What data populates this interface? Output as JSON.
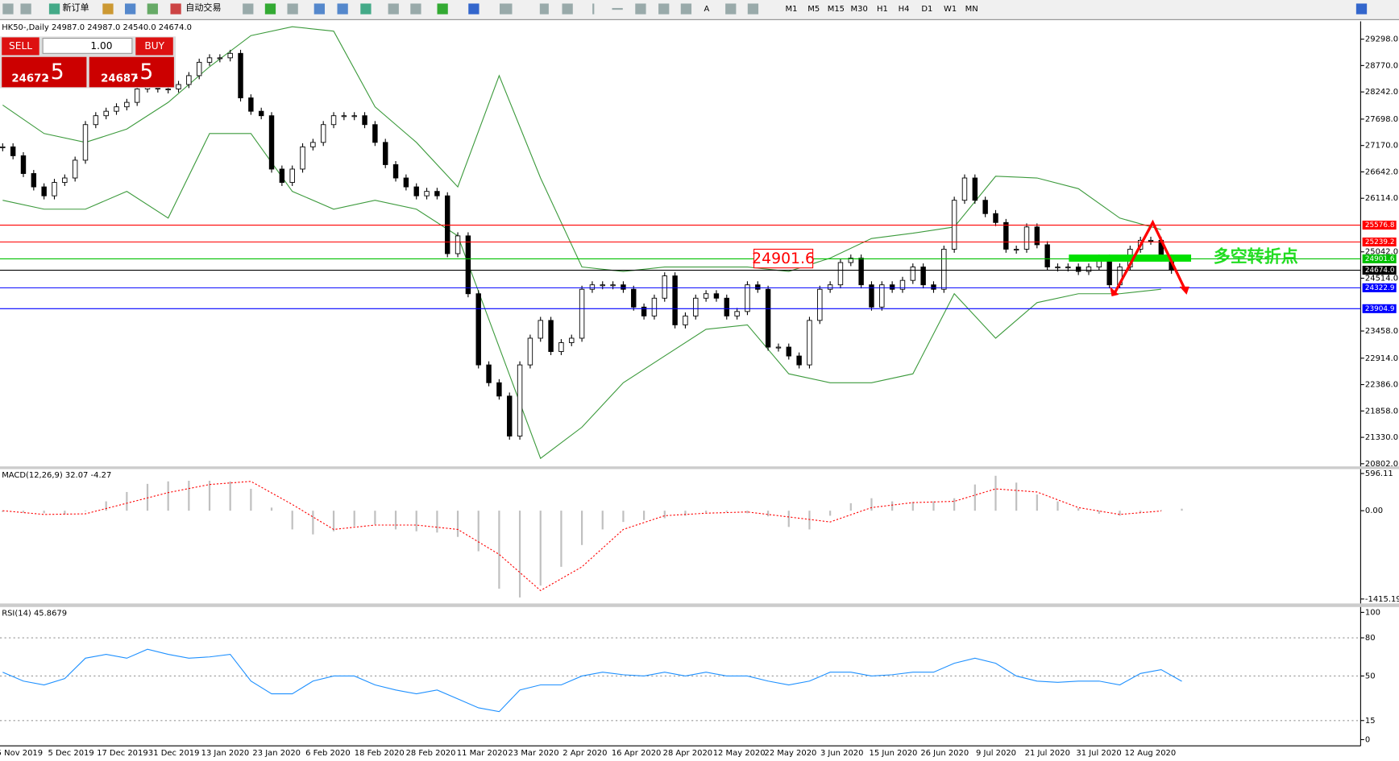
{
  "toolbar": {
    "new_order": "新订单",
    "auto_trading": "自动交易",
    "timeframes": [
      "M1",
      "M5",
      "M15",
      "M30",
      "H1",
      "H4",
      "D1",
      "W1",
      "MN"
    ]
  },
  "trade_panel": {
    "sell": "SELL",
    "lots": "1.00",
    "buy": "BUY",
    "sell_price": "24672",
    "sell_pips": ".5",
    "buy_price": "24687",
    "buy_pips": ".5"
  },
  "chart_data": [
    {
      "type": "candlestick",
      "title": "HK50-,Daily  24987.0 24987.0 24540.0 24674.0",
      "categories": [
        "5 Nov 2019",
        "5 Dec 2019",
        "17 Dec 2019",
        "31 Dec 2019",
        "13 Jan 2020",
        "23 Jan 2020",
        "6 Feb 2020",
        "18 Feb 2020",
        "28 Feb 2020",
        "11 Mar 2020",
        "23 Mar 2020",
        "2 Apr 2020",
        "16 Apr 2020",
        "28 Apr 2020",
        "12 May 2020",
        "22 May 2020",
        "3 Jun 2020",
        "15 Jun 2020",
        "26 Jun 2020",
        "9 Jul 2020",
        "21 Jul 2020",
        "31 Jul 2020",
        "12 Aug 2020"
      ],
      "closes": [
        27143,
        26965,
        26609,
        26342,
        26163,
        26431,
        26520,
        26876,
        27588,
        27766,
        27855,
        27944,
        28033,
        28301,
        28390,
        28301,
        28301,
        28390,
        28568,
        28835,
        28924,
        28924,
        29013,
        28123,
        27855,
        27766,
        26698,
        26431,
        26698,
        27143,
        27232,
        27588,
        27766,
        27766,
        27766,
        27588,
        27232,
        26787,
        26520,
        26342,
        26163,
        26252,
        26163,
        25006,
        25362,
        24204,
        22780,
        22423,
        22156,
        21355,
        22780,
        23314,
        23670,
        23047,
        23225,
        23314,
        24293,
        24382,
        24382,
        24382,
        24293,
        23937,
        23759,
        24115,
        24561,
        23581,
        23759,
        24115,
        24204,
        24115,
        23759,
        23848,
        24382,
        24293,
        23136,
        23136,
        22958,
        22780,
        23670,
        24293,
        24382,
        24828,
        24917,
        24382,
        23937,
        24382,
        24293,
        24471,
        24739,
        24382,
        24293,
        25095,
        26074,
        26520,
        26074,
        25807,
        25629,
        25095,
        25095,
        25540,
        25184,
        24739,
        24739,
        24739,
        24650,
        24739,
        24917,
        24382,
        24739,
        25095,
        25273,
        25273,
        24917,
        24674
      ],
      "bands": {
        "color": "#3c9a3c",
        "upper": [
          27980,
          27410,
          27232,
          27499,
          28033,
          28746,
          29369,
          29547,
          29458,
          27944,
          27232,
          26342,
          28568,
          26520,
          24739,
          24650,
          24739,
          24739,
          24739,
          24650,
          24917,
          25309,
          25415,
          25540,
          26555,
          26520,
          26306,
          25718,
          25487
        ],
        "lower": [
          26074,
          25896,
          25896,
          26252,
          25718,
          27410,
          27410,
          26252,
          25896,
          26074,
          25896,
          25362,
          23136,
          20909,
          21533,
          22423,
          22958,
          23492,
          23581,
          22601,
          22423,
          22423,
          22601,
          24204,
          23314,
          24026,
          24204,
          24204,
          24293
        ]
      },
      "ylim": [
        20749,
        29654
      ],
      "yticks": [
        {
          "value": 29298,
          "label": "29298.0"
        },
        {
          "value": 28770,
          "label": "28770.0"
        },
        {
          "value": 28242,
          "label": "28242.0"
        },
        {
          "value": 27698,
          "label": "27698.0"
        },
        {
          "value": 27170,
          "label": "27170.0"
        },
        {
          "value": 26642,
          "label": "26642.0"
        },
        {
          "value": 26114,
          "label": "26114.0"
        },
        {
          "value": 25042,
          "label": "25042.0"
        },
        {
          "value": 24514,
          "label": "24514.0"
        },
        {
          "value": 23458,
          "label": "23458.0"
        },
        {
          "value": 22914,
          "label": "22914.0"
        },
        {
          "value": 22386,
          "label": "22386.0"
        },
        {
          "value": 21858,
          "label": "21858.0"
        },
        {
          "value": 21330,
          "label": "21330.0"
        },
        {
          "value": 20802,
          "label": "20802.0"
        }
      ],
      "levels": [
        {
          "value": 25576.8,
          "label": "25576.8",
          "color": "#ff0000"
        },
        {
          "value": 25239.2,
          "label": "25239.2",
          "color": "#ff0000"
        },
        {
          "value": 24901.6,
          "label": "24901.6",
          "color": "#00c000"
        },
        {
          "value": 24674,
          "label": "24674.0",
          "color": "#000000"
        },
        {
          "value": 24322.9,
          "label": "24322.9",
          "color": "#0000ff"
        },
        {
          "value": 23904.9,
          "label": "23904.9",
          "color": "#0000ff"
        }
      ],
      "annotation": {
        "label": "24901.6",
        "text": "多空转折点"
      }
    },
    {
      "type": "macd",
      "title": "MACD(12,26,9) 32.07 -4.27",
      "values": [
        -20,
        -30,
        -40,
        -60,
        -10,
        150,
        300,
        430,
        470,
        480,
        480,
        470,
        350,
        50,
        -300,
        -380,
        -330,
        -250,
        -220,
        -300,
        -330,
        -350,
        -420,
        -650,
        -1250,
        -1390,
        -1200,
        -900,
        -550,
        -300,
        -180,
        -150,
        -120,
        -80,
        -30,
        -20,
        -40,
        -90,
        -260,
        -300,
        -80,
        120,
        200,
        150,
        140,
        150,
        200,
        420,
        560,
        450,
        260,
        150,
        40,
        -50,
        -80,
        -30,
        10,
        32.07
      ],
      "signal": [
        0,
        -60,
        -50,
        120,
        290,
        420,
        470,
        100,
        -300,
        -230,
        -230,
        -300,
        -700,
        -1280,
        -900,
        -300,
        -80,
        -40,
        -20,
        -100,
        -180,
        50,
        130,
        150,
        350,
        300,
        50,
        -60,
        -4.27
      ],
      "color": "#c0c0c0",
      "signal_color": "#ff0000",
      "ylim": [
        -1486.5,
        667.4
      ],
      "yticks": [
        596.11,
        {
          "value": 0,
          "label": "0.00"
        },
        -1415.19
      ]
    },
    {
      "type": "rsi",
      "title": "RSI(14) 45.8679",
      "color": "#1e90ff",
      "grid": true,
      "values": [
        53,
        46,
        43,
        48,
        64,
        67,
        64,
        71,
        67,
        64,
        65,
        67,
        46,
        36,
        36,
        46,
        50,
        50,
        43,
        39,
        36,
        39,
        32,
        25,
        22,
        39,
        43,
        43,
        50,
        53,
        51,
        50,
        53,
        50,
        53,
        50,
        50,
        46,
        43,
        46,
        53,
        53,
        50,
        51,
        53,
        53,
        60,
        64,
        60,
        50,
        46,
        45,
        46,
        46,
        43,
        52,
        55,
        45.8679
      ],
      "ylim": [
        -4.9,
        104.2
      ],
      "yticks": [
        100,
        80,
        50,
        15,
        0
      ]
    }
  ]
}
